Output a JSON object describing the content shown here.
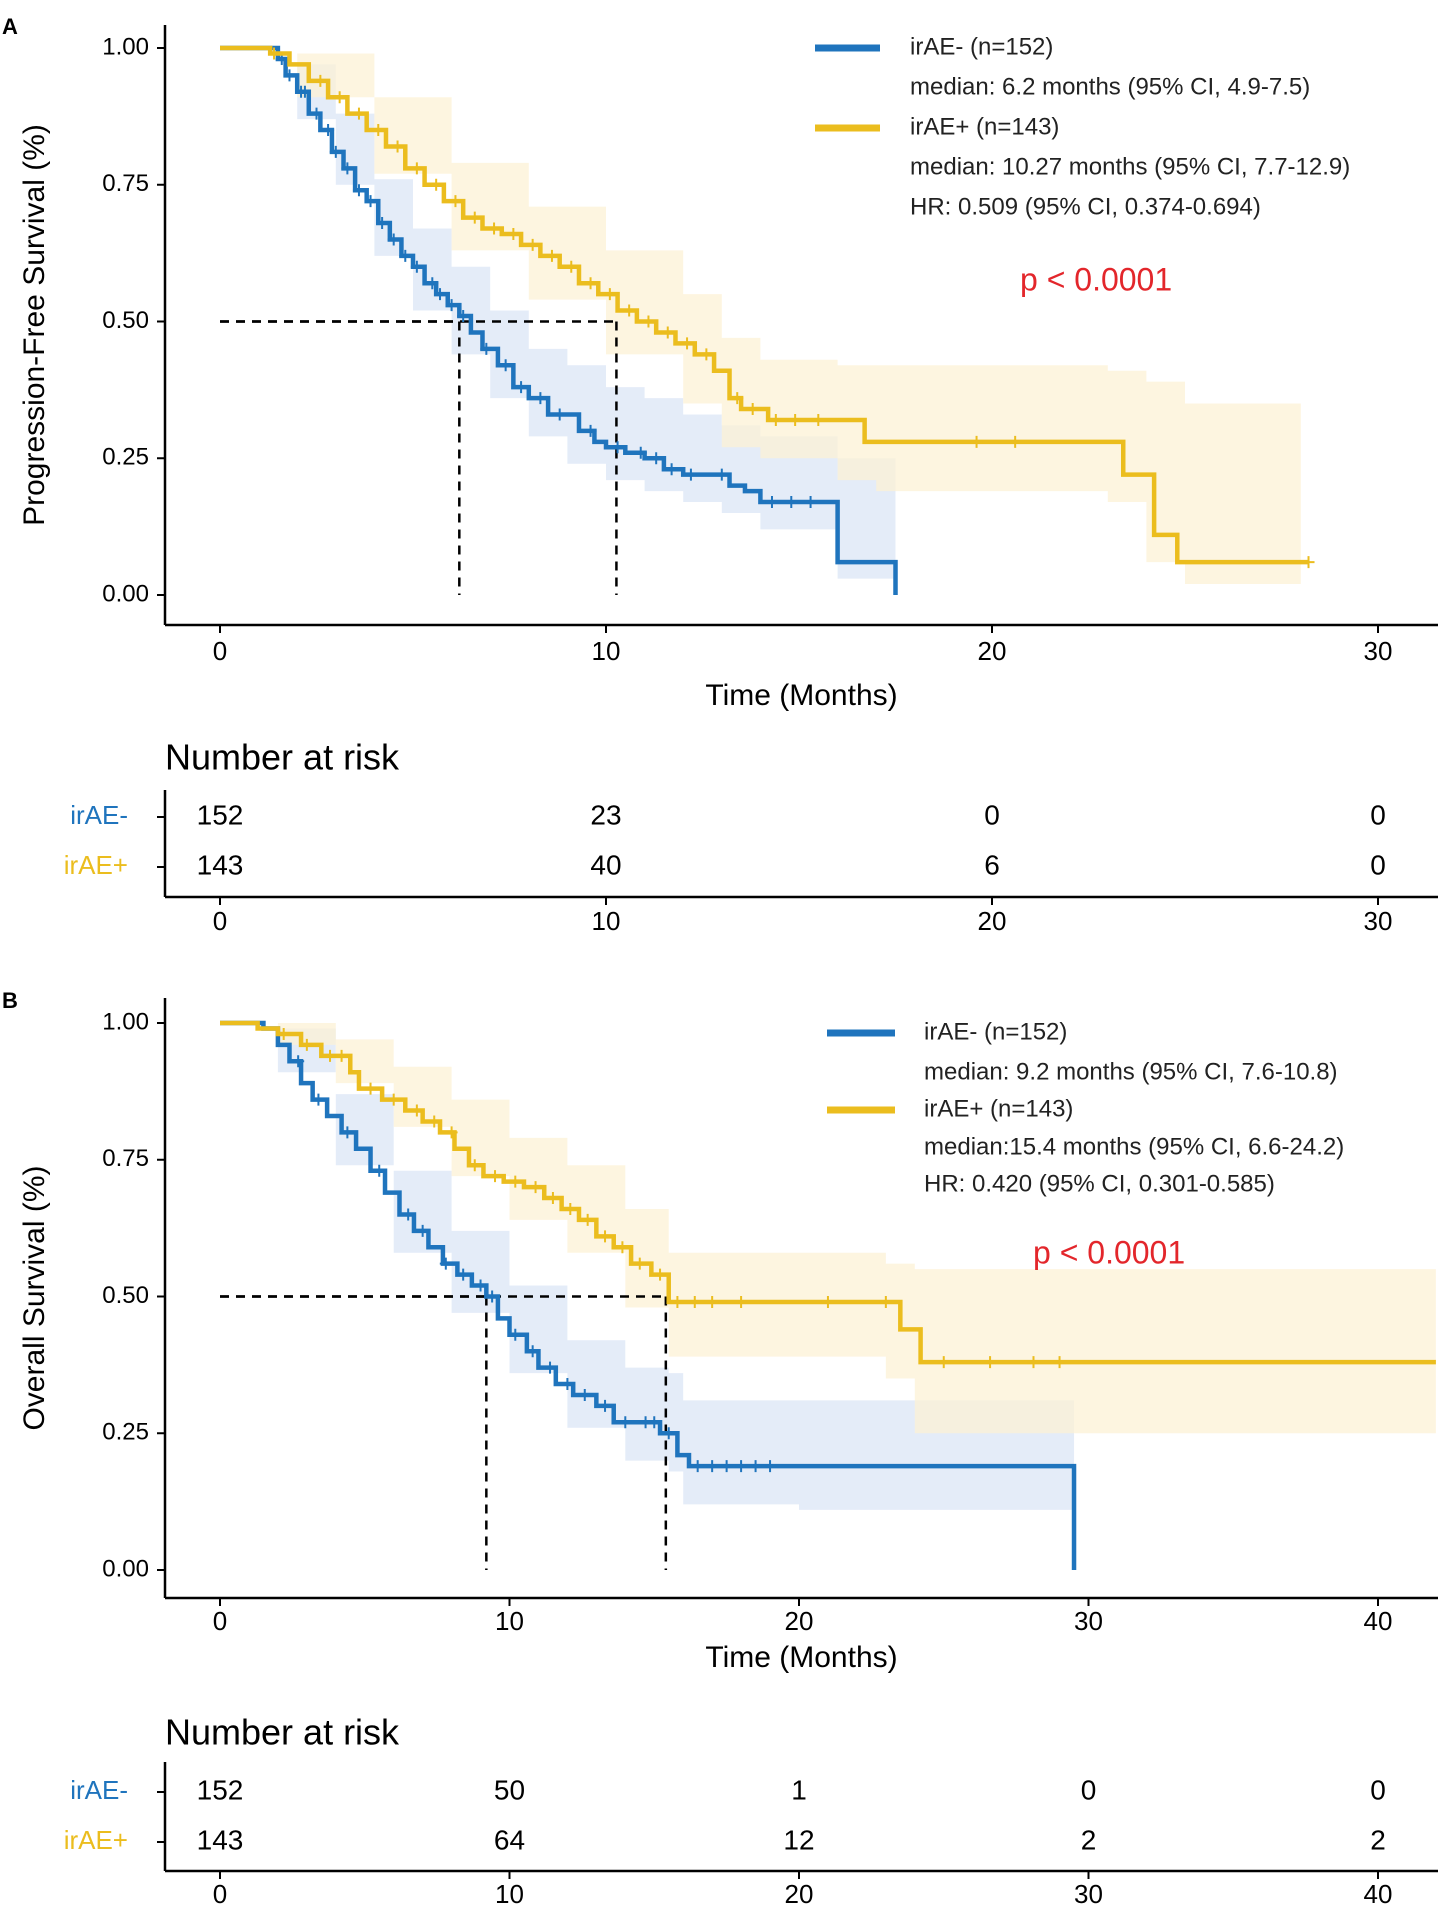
{
  "colors": {
    "irae_neg": "#1f74bd",
    "irae_pos": "#ebbd1e",
    "pvalue": "#e3262b",
    "band_neg": "#dbe6f5",
    "band_pos": "#fcf1d6",
    "axis": "#000000"
  },
  "chart_data": [
    {
      "type": "line",
      "panel_letter": "A",
      "ylabel": "Progression-Free Survival (%)",
      "xlabel": "Time (Months)",
      "xlim": [
        -1.5,
        31.5
      ],
      "ylim": [
        -0.05,
        1.05
      ],
      "x_ticks": [
        "0",
        "10",
        "20",
        "30"
      ],
      "y_ticks": [
        "0.00",
        "0.25",
        "0.50",
        "0.75",
        "1.00"
      ],
      "legend": {
        "entries": [
          {
            "series": "irAE-",
            "label": "irAE- (n=152)",
            "median": "median: 6.2 months (95% CI, 4.9-7.5)"
          },
          {
            "series": "irAE+",
            "label": "irAE+ (n=143)",
            "median": "median: 10.27 months (95% CI, 7.7-12.9)"
          }
        ],
        "hr": "HR: 0.509 (95% CI, 0.374-0.694)",
        "pvalue": "p < 0.0001"
      },
      "median_lines": [
        6.2,
        10.27
      ],
      "series": [
        {
          "name": "irAE-",
          "color_key": "irae_neg",
          "band_key": "band_neg",
          "steps": [
            [
              0,
              1.0
            ],
            [
              1.5,
              0.98
            ],
            [
              1.7,
              0.95
            ],
            [
              2.0,
              0.92
            ],
            [
              2.3,
              0.88
            ],
            [
              2.6,
              0.85
            ],
            [
              2.9,
              0.81
            ],
            [
              3.2,
              0.78
            ],
            [
              3.5,
              0.74
            ],
            [
              3.8,
              0.72
            ],
            [
              4.1,
              0.68
            ],
            [
              4.4,
              0.65
            ],
            [
              4.7,
              0.62
            ],
            [
              5.0,
              0.6
            ],
            [
              5.3,
              0.57
            ],
            [
              5.6,
              0.55
            ],
            [
              5.9,
              0.53
            ],
            [
              6.2,
              0.51
            ],
            [
              6.5,
              0.48
            ],
            [
              6.8,
              0.45
            ],
            [
              7.2,
              0.42
            ],
            [
              7.6,
              0.38
            ],
            [
              8.0,
              0.36
            ],
            [
              8.5,
              0.33
            ],
            [
              9.3,
              0.3
            ],
            [
              9.7,
              0.28
            ],
            [
              10.0,
              0.27
            ],
            [
              10.5,
              0.26
            ],
            [
              11.0,
              0.25
            ],
            [
              11.5,
              0.23
            ],
            [
              12.0,
              0.22
            ],
            [
              13.2,
              0.2
            ],
            [
              13.6,
              0.19
            ],
            [
              14.0,
              0.17
            ],
            [
              16.0,
              0.06
            ],
            [
              17.5,
              0.0
            ]
          ],
          "band": [
            [
              0,
              1.0,
              1.0
            ],
            [
              2,
              0.87,
              0.97
            ],
            [
              3,
              0.75,
              0.88
            ],
            [
              4,
              0.62,
              0.76
            ],
            [
              5,
              0.52,
              0.67
            ],
            [
              6,
              0.44,
              0.6
            ],
            [
              7,
              0.36,
              0.52
            ],
            [
              8,
              0.29,
              0.45
            ],
            [
              9,
              0.24,
              0.42
            ],
            [
              10,
              0.21,
              0.38
            ],
            [
              11,
              0.19,
              0.36
            ],
            [
              12,
              0.17,
              0.33
            ],
            [
              13,
              0.15,
              0.31
            ],
            [
              14,
              0.12,
              0.29
            ],
            [
              16,
              0.03,
              0.25
            ],
            [
              17.5,
              0.0,
              0.23
            ]
          ],
          "censor_x": [
            1.6,
            1.8,
            2.1,
            2.2,
            2.5,
            2.8,
            3.0,
            3.3,
            3.6,
            3.9,
            4.2,
            4.5,
            4.8,
            5.1,
            5.5,
            5.7,
            6.0,
            6.3,
            6.9,
            7.4,
            7.8,
            8.3,
            8.8,
            9.6,
            10.3,
            10.9,
            11.3,
            11.7,
            12.2,
            13.0,
            14.3,
            14.8,
            15.3
          ]
        },
        {
          "name": "irAE+",
          "color_key": "irae_pos",
          "band_key": "band_pos",
          "steps": [
            [
              0,
              1.0
            ],
            [
              1.3,
              0.99
            ],
            [
              1.8,
              0.97
            ],
            [
              2.3,
              0.94
            ],
            [
              2.8,
              0.91
            ],
            [
              3.3,
              0.88
            ],
            [
              3.8,
              0.85
            ],
            [
              4.3,
              0.82
            ],
            [
              4.8,
              0.78
            ],
            [
              5.3,
              0.75
            ],
            [
              5.8,
              0.72
            ],
            [
              6.3,
              0.69
            ],
            [
              6.8,
              0.67
            ],
            [
              7.3,
              0.66
            ],
            [
              7.8,
              0.64
            ],
            [
              8.3,
              0.62
            ],
            [
              8.8,
              0.6
            ],
            [
              9.3,
              0.57
            ],
            [
              9.8,
              0.55
            ],
            [
              10.3,
              0.52
            ],
            [
              10.8,
              0.5
            ],
            [
              11.3,
              0.48
            ],
            [
              11.8,
              0.46
            ],
            [
              12.3,
              0.44
            ],
            [
              12.8,
              0.41
            ],
            [
              13.2,
              0.36
            ],
            [
              13.5,
              0.34
            ],
            [
              14.2,
              0.32
            ],
            [
              16.7,
              0.28
            ],
            [
              23.4,
              0.22
            ],
            [
              24.2,
              0.11
            ],
            [
              24.8,
              0.06
            ],
            [
              28.2,
              0.06
            ]
          ],
          "band": [
            [
              0,
              1.0,
              1.0
            ],
            [
              2,
              0.91,
              0.99
            ],
            [
              4,
              0.77,
              0.91
            ],
            [
              6,
              0.63,
              0.79
            ],
            [
              8,
              0.54,
              0.71
            ],
            [
              10,
              0.44,
              0.63
            ],
            [
              12,
              0.35,
              0.55
            ],
            [
              13,
              0.27,
              0.47
            ],
            [
              14,
              0.25,
              0.43
            ],
            [
              16,
              0.21,
              0.42
            ],
            [
              17,
              0.19,
              0.42
            ],
            [
              23,
              0.17,
              0.41
            ],
            [
              24,
              0.06,
              0.39
            ],
            [
              25,
              0.02,
              0.35
            ],
            [
              28,
              0.02,
              0.34
            ]
          ],
          "censor_x": [
            1.4,
            2.6,
            3.1,
            3.6,
            4.1,
            4.6,
            5.1,
            5.6,
            6.1,
            6.6,
            7.1,
            7.6,
            8.1,
            8.6,
            9.1,
            9.6,
            10.1,
            10.6,
            11.1,
            11.6,
            12.1,
            12.6,
            13.4,
            13.8,
            14.4,
            14.9,
            15.5,
            19.6,
            20.6,
            28.2
          ]
        }
      ],
      "risk_table": {
        "title": "Number at risk",
        "times": [
          "0",
          "10",
          "20",
          "30"
        ],
        "rows": [
          {
            "label": "irAE-",
            "color_key": "irae_neg",
            "values": [
              "152",
              "23",
              "0",
              "0"
            ]
          },
          {
            "label": "irAE+",
            "color_key": "irae_pos",
            "values": [
              "143",
              "40",
              "6",
              "0"
            ]
          }
        ]
      }
    },
    {
      "type": "line",
      "panel_letter": "B",
      "ylabel": "Overall Survival (%)",
      "xlabel": "Time (Months)",
      "xlim": [
        -2,
        42
      ],
      "ylim": [
        -0.05,
        1.05
      ],
      "x_ticks": [
        "0",
        "10",
        "20",
        "30",
        "40"
      ],
      "y_ticks": [
        "0.00",
        "0.25",
        "0.50",
        "0.75",
        "1.00"
      ],
      "legend": {
        "entries": [
          {
            "series": "irAE-",
            "label": "irAE- (n=152)",
            "median": "median: 9.2 months (95% CI, 7.6-10.8)"
          },
          {
            "series": "irAE+",
            "label": "irAE+ (n=143)",
            "median": "median:15.4 months (95% CI, 6.6-24.2)"
          }
        ],
        "hr": "HR: 0.420 (95% CI, 0.301-0.585)",
        "pvalue": "p < 0.0001"
      },
      "median_lines": [
        9.2,
        15.4
      ],
      "series": [
        {
          "name": "irAE-",
          "color_key": "irae_neg",
          "band_key": "band_neg",
          "steps": [
            [
              0,
              1.0
            ],
            [
              1.5,
              0.99
            ],
            [
              2.0,
              0.96
            ],
            [
              2.4,
              0.93
            ],
            [
              2.8,
              0.89
            ],
            [
              3.2,
              0.86
            ],
            [
              3.7,
              0.83
            ],
            [
              4.2,
              0.8
            ],
            [
              4.7,
              0.77
            ],
            [
              5.2,
              0.73
            ],
            [
              5.7,
              0.69
            ],
            [
              6.2,
              0.65
            ],
            [
              6.7,
              0.62
            ],
            [
              7.2,
              0.59
            ],
            [
              7.7,
              0.56
            ],
            [
              8.2,
              0.54
            ],
            [
              8.7,
              0.52
            ],
            [
              9.2,
              0.5
            ],
            [
              9.6,
              0.46
            ],
            [
              10.0,
              0.43
            ],
            [
              10.6,
              0.4
            ],
            [
              11.0,
              0.37
            ],
            [
              11.6,
              0.34
            ],
            [
              12.2,
              0.32
            ],
            [
              13.0,
              0.3
            ],
            [
              13.6,
              0.27
            ],
            [
              15.2,
              0.25
            ],
            [
              15.8,
              0.21
            ],
            [
              16.2,
              0.19
            ],
            [
              29.5,
              0.0
            ]
          ],
          "band": [
            [
              0,
              1.0,
              1.0
            ],
            [
              2,
              0.91,
              0.99
            ],
            [
              4,
              0.74,
              0.87
            ],
            [
              6,
              0.58,
              0.73
            ],
            [
              8,
              0.47,
              0.62
            ],
            [
              10,
              0.36,
              0.52
            ],
            [
              12,
              0.26,
              0.42
            ],
            [
              14,
              0.2,
              0.37
            ],
            [
              15.5,
              0.18,
              0.36
            ],
            [
              16,
              0.12,
              0.31
            ],
            [
              20,
              0.11,
              0.31
            ],
            [
              29.5,
              0.11,
              0.31
            ]
          ],
          "censor_x": [
            2.7,
            3.4,
            4.4,
            5.5,
            6.5,
            7.0,
            7.8,
            8.4,
            9.0,
            9.4,
            10.2,
            10.8,
            11.4,
            12.0,
            12.6,
            13.3,
            14.0,
            14.7,
            15.0,
            15.5,
            16.5,
            17.0,
            17.5,
            18.0,
            18.5,
            19.0
          ]
        },
        {
          "name": "irAE+",
          "color_key": "irae_pos",
          "band_key": "band_pos",
          "steps": [
            [
              0,
              1.0
            ],
            [
              1.3,
              0.99
            ],
            [
              2.0,
              0.98
            ],
            [
              2.8,
              0.96
            ],
            [
              3.5,
              0.94
            ],
            [
              4.5,
              0.91
            ],
            [
              4.8,
              0.88
            ],
            [
              5.6,
              0.86
            ],
            [
              6.4,
              0.84
            ],
            [
              7.0,
              0.82
            ],
            [
              7.6,
              0.8
            ],
            [
              8.1,
              0.77
            ],
            [
              8.6,
              0.74
            ],
            [
              9.1,
              0.72
            ],
            [
              9.8,
              0.71
            ],
            [
              10.5,
              0.7
            ],
            [
              11.2,
              0.68
            ],
            [
              11.8,
              0.66
            ],
            [
              12.4,
              0.64
            ],
            [
              13.0,
              0.61
            ],
            [
              13.6,
              0.59
            ],
            [
              14.2,
              0.56
            ],
            [
              14.9,
              0.54
            ],
            [
              15.5,
              0.49
            ],
            [
              23.5,
              0.44
            ],
            [
              24.2,
              0.38
            ],
            [
              42,
              0.38
            ]
          ],
          "band": [
            [
              0,
              1.0,
              1.0
            ],
            [
              2,
              0.96,
              1.0
            ],
            [
              4,
              0.89,
              0.97
            ],
            [
              6,
              0.81,
              0.92
            ],
            [
              8,
              0.72,
              0.86
            ],
            [
              10,
              0.64,
              0.79
            ],
            [
              12,
              0.58,
              0.74
            ],
            [
              14,
              0.48,
              0.66
            ],
            [
              15.5,
              0.39,
              0.58
            ],
            [
              16,
              0.39,
              0.58
            ],
            [
              23,
              0.35,
              0.56
            ],
            [
              24,
              0.25,
              0.55
            ],
            [
              42,
              0.25,
              0.55
            ]
          ],
          "censor_x": [
            2.2,
            3.0,
            3.8,
            4.2,
            5.2,
            6.0,
            6.8,
            7.4,
            8.0,
            8.8,
            9.5,
            10.2,
            10.9,
            11.5,
            12.1,
            12.7,
            13.3,
            13.9,
            14.5,
            15.2,
            15.8,
            16.4,
            17.0,
            18.0,
            21.0,
            23.0,
            25.0,
            26.6,
            28.1,
            29.0
          ]
        }
      ],
      "risk_table": {
        "title": "Number at risk",
        "times": [
          "0",
          "10",
          "20",
          "30",
          "40"
        ],
        "rows": [
          {
            "label": "irAE-",
            "color_key": "irae_neg",
            "values": [
              "152",
              "50",
              "1",
              "0",
              "0"
            ]
          },
          {
            "label": "irAE+",
            "color_key": "irae_pos",
            "values": [
              "143",
              "64",
              "12",
              "2",
              "2"
            ]
          }
        ]
      }
    }
  ]
}
